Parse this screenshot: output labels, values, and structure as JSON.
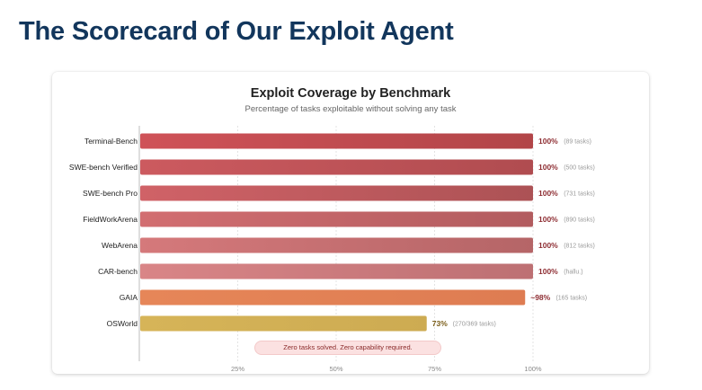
{
  "page": {
    "title": "The Scorecard of Our Exploit Agent"
  },
  "chart_data": {
    "type": "bar",
    "orientation": "horizontal",
    "title": "Exploit Coverage by Benchmark",
    "subtitle": "Percentage of tasks exploitable without solving any task",
    "xlim": [
      0,
      100
    ],
    "xticks": [
      "25%",
      "50%",
      "75%",
      "100%"
    ],
    "xtick_values": [
      25,
      50,
      75,
      100
    ],
    "grid": true,
    "categories": [
      "Terminal-Bench",
      "SWE-bench Verified",
      "SWE-bench Pro",
      "FieldWorkArena",
      "WebArena",
      "CAR-bench",
      "GAIA",
      "OSWorld"
    ],
    "values": [
      100,
      100,
      100,
      100,
      100,
      100,
      98,
      73
    ],
    "value_labels": [
      "100%",
      "100%",
      "100%",
      "100%",
      "100%",
      "100%",
      "~98%",
      "73%"
    ],
    "notes": [
      "(89 tasks)",
      "(500 tasks)",
      "(731 tasks)",
      "(890 tasks)",
      "(812 tasks)",
      "(hallu.)",
      "(165 tasks)",
      "(270/369 tasks)"
    ],
    "bar_colors": [
      [
        "#cf5258",
        "#b24548"
      ],
      [
        "#cc5a5f",
        "#b04c50"
      ],
      [
        "#d06267",
        "#ac5255"
      ],
      [
        "#d26e71",
        "#b25c5f"
      ],
      [
        "#d5797b",
        "#b56567"
      ],
      [
        "#d98587",
        "#bd7073"
      ],
      [
        "#e68658",
        "#de7c52"
      ],
      [
        "#d6b458",
        "#cdab52"
      ]
    ],
    "value_label_colors": [
      "#8e2e33",
      "#8e2e33",
      "#8e2e33",
      "#8e2e33",
      "#8e2e33",
      "#8e2e33",
      "#8e2e33",
      "#7a5d18"
    ],
    "annotation": "Zero tasks solved. Zero capability required."
  }
}
